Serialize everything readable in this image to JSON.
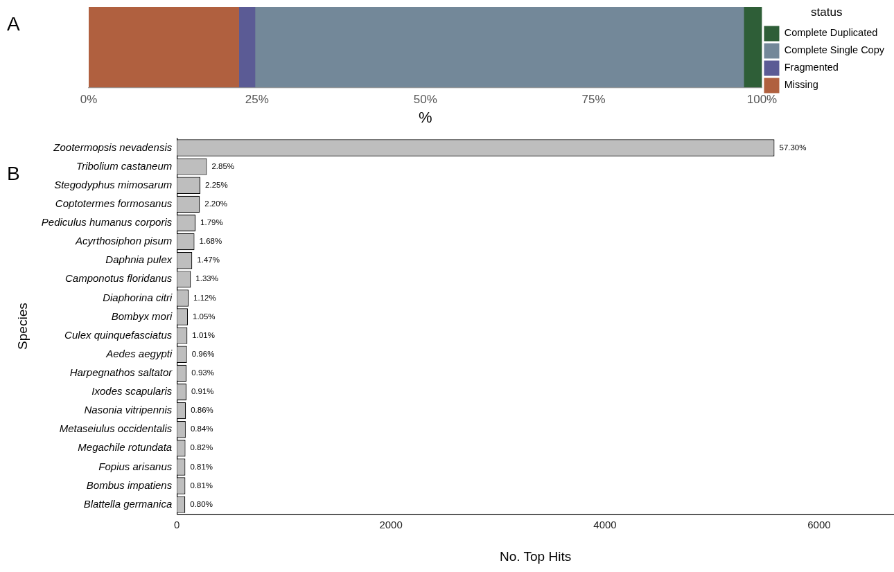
{
  "chart_data": [
    {
      "type": "bar",
      "orientation": "horizontal",
      "stacked": true,
      "categories": [
        null
      ],
      "xlabel": "%",
      "legend_title": "status",
      "legend": "right",
      "grid": false,
      "xlim": [
        0,
        100
      ],
      "xticks": [
        {
          "value": 0,
          "label": "0%"
        },
        {
          "value": 25,
          "label": "25%"
        },
        {
          "value": 50,
          "label": "50%"
        },
        {
          "value": 75,
          "label": "75%"
        },
        {
          "value": 100,
          "label": "100%"
        }
      ],
      "annotations": [
        "A"
      ],
      "series": [
        {
          "name": "Missing",
          "color": "#b0603f",
          "values": [
            22.3
          ]
        },
        {
          "name": "Fragmented",
          "color": "#5b5b95",
          "values": [
            2.4
          ]
        },
        {
          "name": "Complete Single Copy",
          "color": "#738899",
          "values": [
            72.6
          ]
        },
        {
          "name": "Complete Duplicated",
          "color": "#2e5e37",
          "values": [
            2.7
          ]
        }
      ]
    },
    {
      "type": "bar",
      "orientation": "horizontal",
      "ylabel": "Species",
      "xlabel": "No. Top Hits",
      "grid": false,
      "legend": false,
      "color": "#bebebe",
      "xlim": [
        0,
        6700
      ],
      "xticks": [
        0,
        2000,
        4000,
        6000
      ],
      "annotations": [
        "B",
        {
          "text": "57.30%",
          "x": 5583,
          "y": "Zootermopsis nevadensis"
        },
        {
          "text": "2.85%",
          "x": 280,
          "y": "Tribolium castaneum"
        },
        {
          "text": "2.25%",
          "x": 219,
          "y": "Stegodyphus mimosarum"
        },
        {
          "text": "2.20%",
          "x": 214,
          "y": "Coptotermes formosanus"
        },
        {
          "text": "1.79%",
          "x": 174,
          "y": "Pediculus humanus corporis"
        },
        {
          "text": "1.68%",
          "x": 164,
          "y": "Acyrthosiphon pisum"
        },
        {
          "text": "1.47%",
          "x": 143,
          "y": "Daphnia pulex"
        },
        {
          "text": "1.33%",
          "x": 130,
          "y": "Camponotus floridanus"
        },
        {
          "text": "1.12%",
          "x": 109,
          "y": "Diaphorina citri"
        },
        {
          "text": "1.05%",
          "x": 102,
          "y": "Bombyx mori"
        },
        {
          "text": "1.01%",
          "x": 98,
          "y": "Culex quinquefasciatus"
        },
        {
          "text": "0.96%",
          "x": 94,
          "y": "Aedes aegypti"
        },
        {
          "text": "0.93%",
          "x": 91,
          "y": "Harpegnathos saltator"
        },
        {
          "text": "0.91%",
          "x": 89,
          "y": "Ixodes scapularis"
        },
        {
          "text": "0.86%",
          "x": 84,
          "y": "Nasonia vitripennis"
        },
        {
          "text": "0.84%",
          "x": 82,
          "y": "Metaseiulus occidentalis"
        },
        {
          "text": "0.82%",
          "x": 80,
          "y": "Megachile rotundata"
        },
        {
          "text": "0.81%",
          "x": 79,
          "y": "Fopius arisanus"
        },
        {
          "text": "0.81%",
          "x": 79,
          "y": "Bombus impatiens"
        },
        {
          "text": "0.80%",
          "x": 78,
          "y": "Blattella germanica"
        }
      ],
      "categories": [
        "Zootermopsis nevadensis",
        "Tribolium castaneum",
        "Stegodyphus mimosarum",
        "Coptotermes formosanus",
        "Pediculus humanus corporis",
        "Acyrthosiphon pisum",
        "Daphnia pulex",
        "Camponotus floridanus",
        "Diaphorina citri",
        "Bombyx mori",
        "Culex quinquefasciatus",
        "Aedes aegypti",
        "Harpegnathos saltator",
        "Ixodes scapularis",
        "Nasonia vitripennis",
        "Metaseiulus occidentalis",
        "Megachile rotundata",
        "Fopius arisanus",
        "Bombus impatiens",
        "Blattella germanica"
      ],
      "values": [
        5583,
        280,
        219,
        214,
        174,
        164,
        143,
        130,
        109,
        102,
        98,
        94,
        91,
        89,
        84,
        82,
        80,
        79,
        79,
        78
      ]
    }
  ]
}
